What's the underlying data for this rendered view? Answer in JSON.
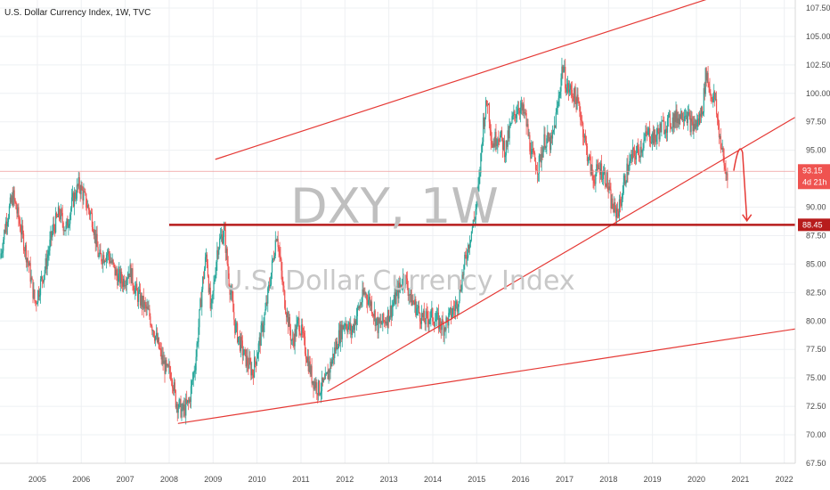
{
  "title": "U.S. Dollar Currency Index, 1W, TVC",
  "watermark": {
    "symbol": "DXY, 1W",
    "description": "U.S. Dollar Currency Index"
  },
  "chart_data": {
    "type": "candlestick",
    "title": "U.S. Dollar Currency Index, 1W, TVC",
    "x_ticks": [
      "2005",
      "2006",
      "2007",
      "2008",
      "2009",
      "2010",
      "2011",
      "2012",
      "2013",
      "2014",
      "2015",
      "2016",
      "2017",
      "2018",
      "2019",
      "2020",
      "2021",
      "2022"
    ],
    "y_ticks": [
      "67.50",
      "70.00",
      "72.50",
      "75.00",
      "77.50",
      "80.00",
      "82.50",
      "85.00",
      "87.50",
      "90.00",
      "92.50",
      "95.00",
      "97.50",
      "100.00",
      "102.50",
      "105.00",
      "107.50"
    ],
    "xlim": [
      2004.15,
      2022.25
    ],
    "ylim": [
      67.5,
      108.2
    ],
    "grid": true,
    "colors": {
      "up": "#26a69a",
      "down": "#ef5350",
      "line": "#e53935",
      "support": "#b71c1c"
    },
    "price_path": [
      [
        2004.15,
        85.5
      ],
      [
        2004.3,
        89.0
      ],
      [
        2004.45,
        91.0
      ],
      [
        2004.6,
        88.5
      ],
      [
        2004.8,
        85.0
      ],
      [
        2004.95,
        81.5
      ],
      [
        2005.05,
        83.0
      ],
      [
        2005.2,
        85.0
      ],
      [
        2005.35,
        88.0
      ],
      [
        2005.5,
        89.5
      ],
      [
        2005.65,
        88.0
      ],
      [
        2005.8,
        90.5
      ],
      [
        2005.95,
        92.0
      ],
      [
        2006.1,
        90.5
      ],
      [
        2006.25,
        89.0
      ],
      [
        2006.4,
        85.5
      ],
      [
        2006.6,
        86.0
      ],
      [
        2006.8,
        84.0
      ],
      [
        2006.95,
        83.5
      ],
      [
        2007.1,
        84.5
      ],
      [
        2007.25,
        82.5
      ],
      [
        2007.4,
        81.5
      ],
      [
        2007.55,
        80.5
      ],
      [
        2007.7,
        78.5
      ],
      [
        2007.85,
        76.5
      ],
      [
        2007.95,
        75.5
      ],
      [
        2008.05,
        75.5
      ],
      [
        2008.15,
        73.0
      ],
      [
        2008.3,
        72.0
      ],
      [
        2008.45,
        72.8
      ],
      [
        2008.6,
        76.5
      ],
      [
        2008.75,
        83.0
      ],
      [
        2008.85,
        86.0
      ],
      [
        2008.95,
        80.5
      ],
      [
        2009.1,
        86.5
      ],
      [
        2009.25,
        88.0
      ],
      [
        2009.35,
        84.0
      ],
      [
        2009.5,
        79.5
      ],
      [
        2009.7,
        77.0
      ],
      [
        2009.9,
        75.5
      ],
      [
        2010.05,
        78.0
      ],
      [
        2010.2,
        81.0
      ],
      [
        2010.35,
        85.0
      ],
      [
        2010.45,
        88.0
      ],
      [
        2010.6,
        82.5
      ],
      [
        2010.8,
        78.0
      ],
      [
        2010.95,
        80.0
      ],
      [
        2011.1,
        77.5
      ],
      [
        2011.25,
        75.0
      ],
      [
        2011.4,
        74.0
      ],
      [
        2011.55,
        74.5
      ],
      [
        2011.7,
        76.5
      ],
      [
        2011.85,
        78.5
      ],
      [
        2012.0,
        80.0
      ],
      [
        2012.15,
        79.0
      ],
      [
        2012.3,
        81.0
      ],
      [
        2012.45,
        82.5
      ],
      [
        2012.6,
        81.5
      ],
      [
        2012.75,
        79.5
      ],
      [
        2012.9,
        80.0
      ],
      [
        2013.05,
        81.0
      ],
      [
        2013.2,
        82.5
      ],
      [
        2013.35,
        84.0
      ],
      [
        2013.5,
        82.0
      ],
      [
        2013.65,
        81.0
      ],
      [
        2013.8,
        80.0
      ],
      [
        2013.95,
        80.5
      ],
      [
        2014.1,
        80.0
      ],
      [
        2014.25,
        79.5
      ],
      [
        2014.4,
        80.5
      ],
      [
        2014.55,
        81.5
      ],
      [
        2014.7,
        84.5
      ],
      [
        2014.85,
        87.5
      ],
      [
        2014.95,
        89.0
      ],
      [
        2015.05,
        92.0
      ],
      [
        2015.15,
        97.5
      ],
      [
        2015.25,
        99.5
      ],
      [
        2015.35,
        95.5
      ],
      [
        2015.5,
        96.5
      ],
      [
        2015.65,
        95.0
      ],
      [
        2015.8,
        97.5
      ],
      [
        2015.95,
        99.0
      ],
      [
        2016.1,
        98.0
      ],
      [
        2016.25,
        94.5
      ],
      [
        2016.4,
        93.5
      ],
      [
        2016.55,
        96.0
      ],
      [
        2016.7,
        95.5
      ],
      [
        2016.85,
        99.0
      ],
      [
        2016.95,
        102.5
      ],
      [
        2017.05,
        100.5
      ],
      [
        2017.2,
        100.0
      ],
      [
        2017.35,
        98.5
      ],
      [
        2017.5,
        95.0
      ],
      [
        2017.65,
        92.5
      ],
      [
        2017.8,
        93.5
      ],
      [
        2017.95,
        92.5
      ],
      [
        2018.05,
        90.5
      ],
      [
        2018.15,
        89.5
      ],
      [
        2018.25,
        90.0
      ],
      [
        2018.4,
        93.0
      ],
      [
        2018.55,
        94.5
      ],
      [
        2018.7,
        95.0
      ],
      [
        2018.9,
        96.5
      ],
      [
        2019.05,
        96.0
      ],
      [
        2019.2,
        97.0
      ],
      [
        2019.4,
        97.5
      ],
      [
        2019.6,
        98.0
      ],
      [
        2019.75,
        98.5
      ],
      [
        2019.9,
        97.0
      ],
      [
        2020.05,
        97.5
      ],
      [
        2020.15,
        99.0
      ],
      [
        2020.22,
        102.0
      ],
      [
        2020.32,
        100.0
      ],
      [
        2020.42,
        99.5
      ],
      [
        2020.5,
        97.0
      ],
      [
        2020.58,
        95.0
      ],
      [
        2020.66,
        93.0
      ],
      [
        2020.72,
        93.15
      ]
    ],
    "annotations": {
      "channel_upper": [
        [
          2009.05,
          94.2
        ],
        [
          2021.7,
          110.1
        ]
      ],
      "channel_lower": [
        [
          2011.6,
          73.8
        ],
        [
          2022.25,
          97.9
        ]
      ],
      "long_trend": [
        [
          2008.2,
          71.0
        ],
        [
          2022.25,
          79.3
        ]
      ],
      "support_line": {
        "value": 88.45,
        "from_x": 2008.0,
        "label": "88.45"
      },
      "current_price": {
        "value": 93.15,
        "label": "93.15",
        "countdown": "4d 21h"
      },
      "projection_arrow": [
        [
          2020.85,
          93.2
        ],
        [
          2021.05,
          94.8
        ],
        [
          2021.15,
          88.8
        ]
      ]
    }
  }
}
